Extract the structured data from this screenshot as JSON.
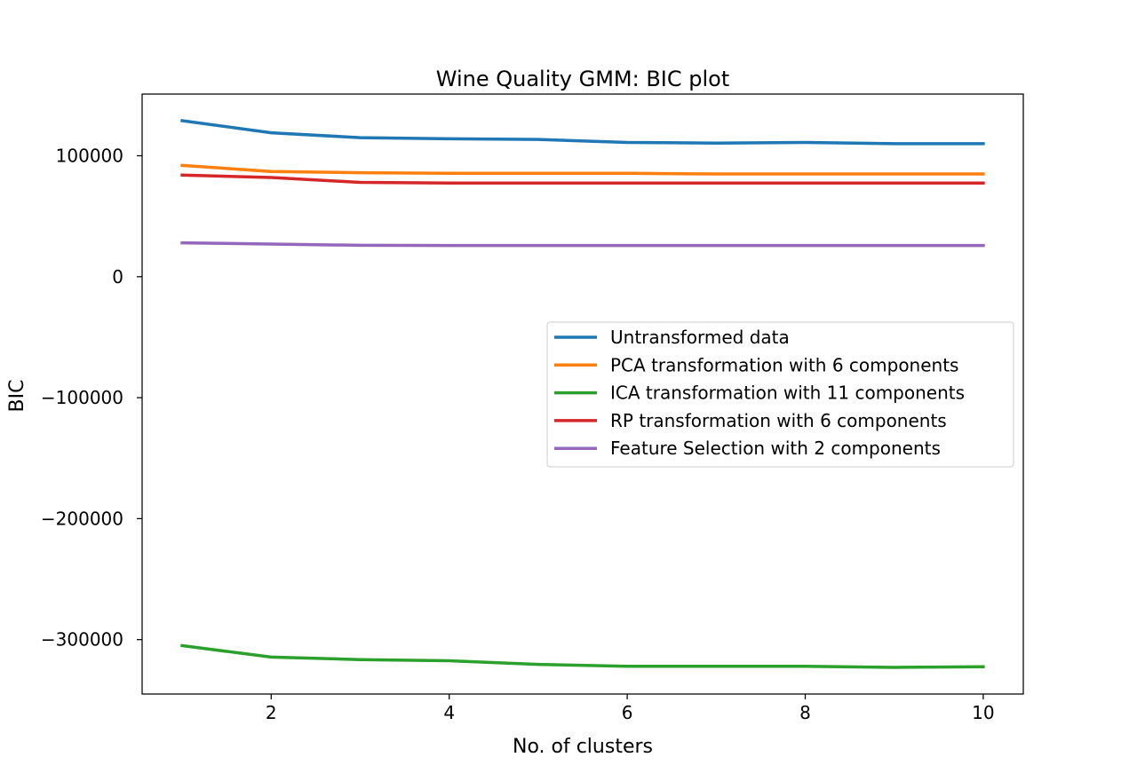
{
  "chart_data": {
    "type": "line",
    "title": "Wine Quality GMM: BIC plot",
    "xlabel": "No. of clusters",
    "ylabel": "BIC",
    "xlim": [
      0.55,
      10.45
    ],
    "ylim": [
      -345000,
      151000
    ],
    "xticks": [
      2,
      4,
      6,
      8,
      10
    ],
    "yticks": [
      100000,
      0,
      -100000,
      -200000,
      -300000
    ],
    "ytick_labels": [
      "100000",
      "0",
      "−100000",
      "−200000",
      "−300000"
    ],
    "grid": false,
    "legend_position": "center-right",
    "x": [
      1,
      2,
      3,
      4,
      5,
      6,
      7,
      8,
      9,
      10
    ],
    "series": [
      {
        "name": "Untransformed data",
        "color": "#1f77b4",
        "values": [
          129000,
          119000,
          115000,
          114000,
          113500,
          111000,
          110500,
          111000,
          110000,
          110000
        ]
      },
      {
        "name": "PCA transformation with 6 components",
        "color": "#ff7f0e",
        "values": [
          92000,
          87000,
          86000,
          85500,
          85500,
          85500,
          85000,
          85000,
          85000,
          85000
        ]
      },
      {
        "name": "ICA transformation with 11 components",
        "color": "#2ca02c",
        "values": [
          -305000,
          -314500,
          -316500,
          -317500,
          -320500,
          -322000,
          -322000,
          -322000,
          -323000,
          -322500
        ]
      },
      {
        "name": "RP transformation with 6 components",
        "color": "#d62728",
        "values": [
          84000,
          82000,
          78000,
          77500,
          77500,
          77500,
          77500,
          77500,
          77500,
          77500
        ]
      },
      {
        "name": "Feature Selection with 2 components",
        "color": "#9467bd",
        "values": [
          28000,
          27000,
          26000,
          25800,
          25800,
          25800,
          25800,
          25800,
          25800,
          25800
        ]
      }
    ]
  }
}
